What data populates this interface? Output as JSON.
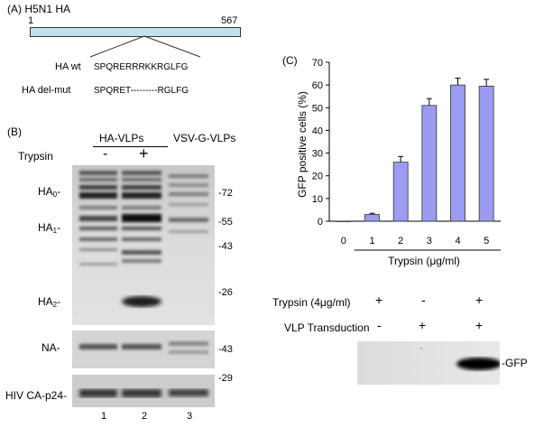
{
  "panel_a": {
    "label": "(A)",
    "title": "H5N1 HA",
    "start": "1",
    "end": "567",
    "rows": [
      {
        "name": "HA wt",
        "seq": "SPQRERRRKKRGLFG"
      },
      {
        "name": "HA del-mut",
        "seq": "SPQRET---------RGLFG"
      }
    ]
  },
  "panel_b": {
    "label": "(B)",
    "group_ha": "HA-VLPs",
    "group_vsv": "VSV-G-VLPs",
    "trypsin_label": "Trypsin",
    "minus": "-",
    "plus": "+",
    "band_labels": [
      {
        "main": "HA",
        "sub": "0",
        "tail": "-"
      },
      {
        "main": "HA",
        "sub": "1",
        "tail": "-"
      },
      {
        "main": "HA",
        "sub": "2",
        "tail": "-"
      },
      {
        "main": "NA-",
        "sub": "",
        "tail": ""
      },
      {
        "main": "HIV CA-p24-",
        "sub": "",
        "tail": ""
      }
    ],
    "markers": [
      "-72",
      "-55",
      "-43",
      "-26",
      "-43",
      "-29"
    ],
    "lanes": [
      "1",
      "2",
      "3"
    ]
  },
  "panel_c": {
    "label": "(C)",
    "trypsin_row_label": "Trypsin (4μg/ml)",
    "trypsin_row": [
      "+",
      "-",
      "+"
    ],
    "transduction_row_label": "VLP Transduction",
    "transduction_row": [
      "-",
      "+",
      "+"
    ],
    "blot_label": "-GFP"
  },
  "chart_data": {
    "type": "bar",
    "categories": [
      "0",
      "1",
      "2",
      "3",
      "4",
      "5"
    ],
    "values": [
      0,
      3,
      26,
      51,
      60,
      59.5
    ],
    "errors": [
      0,
      0.5,
      2.5,
      3,
      3,
      3
    ],
    "xlabel": "Trypsin (μg/ml)",
    "ylabel": "GFP positive cells (%)",
    "ylim": [
      0,
      70
    ],
    "yticks": [
      "0",
      "10",
      "20",
      "30",
      "40",
      "50",
      "60",
      "70"
    ],
    "bar_color": "#9b9bf2",
    "grid": false
  }
}
